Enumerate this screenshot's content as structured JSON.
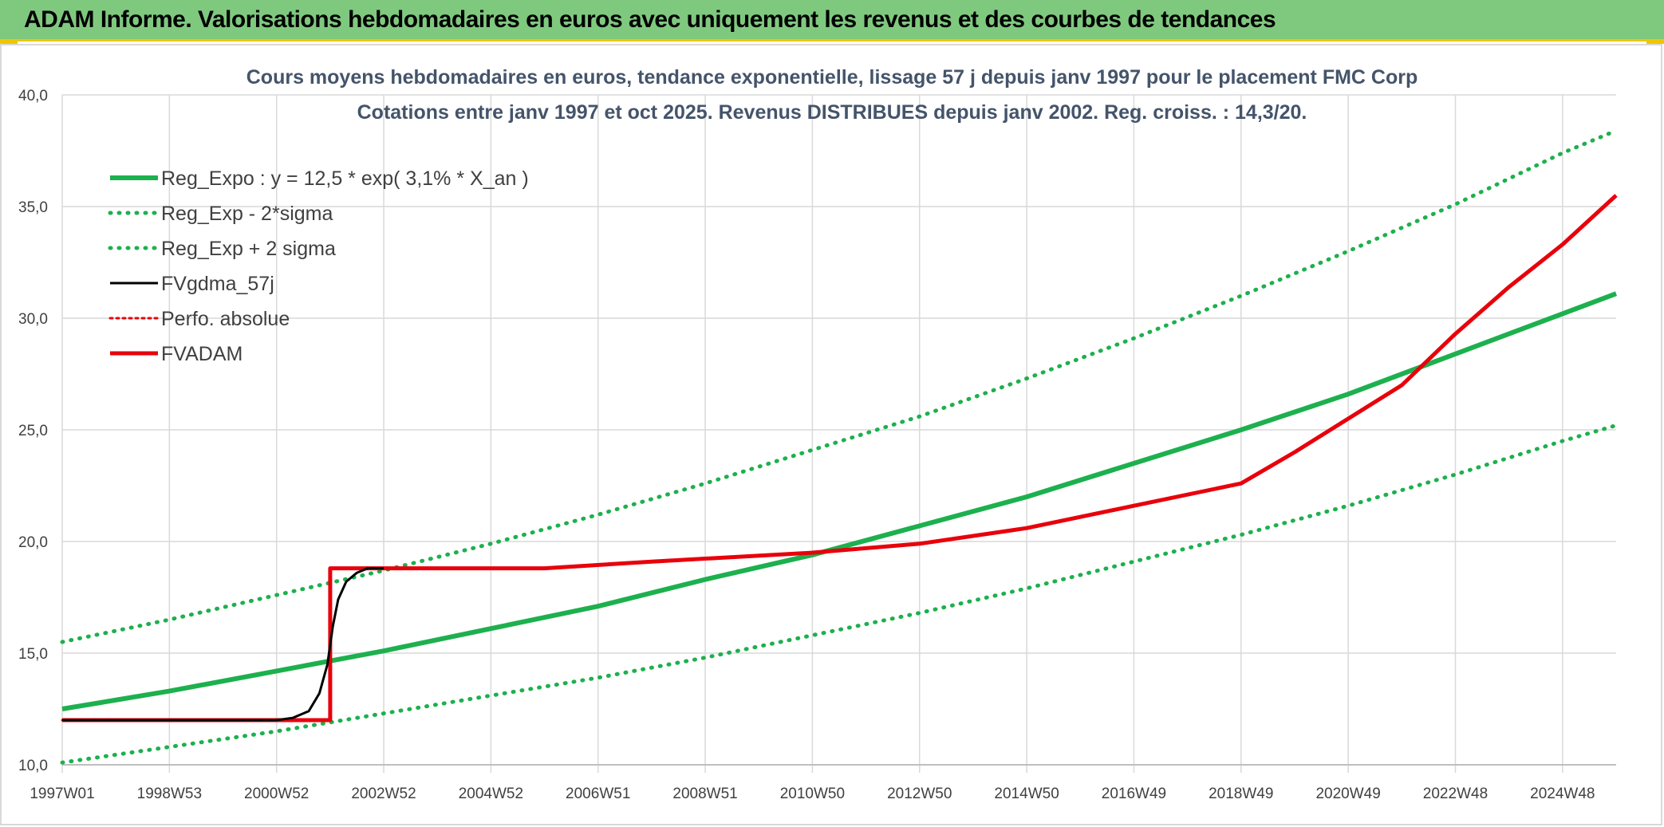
{
  "header": {
    "title": "ADAM Informe. Valorisations hebdomadaires en euros avec uniquement les revenus et des courbes de tendances"
  },
  "colors": {
    "header_bg": "#7fc97f",
    "accent": "#f2c500",
    "green": "#1db04e",
    "black": "#000000",
    "red": "#e8000b"
  },
  "chart_data": {
    "type": "line",
    "title": "Cours moyens hebdomadaires en euros, tendance exponentielle, lissage 57 j depuis janv 1997 pour le placement FMC Corp",
    "subtitle": "Cotations entre janv 1997 et oct 2025. Revenus DISTRIBUES depuis janv 2002. Reg. croiss. : 14,3/20.",
    "xlabel": "",
    "ylabel": "",
    "xlim": [
      1997.0,
      2026.0
    ],
    "ylim": [
      10,
      40
    ],
    "y_ticks": [
      "10,0",
      "15,0",
      "20,0",
      "25,0",
      "30,0",
      "35,0",
      "40,0"
    ],
    "x_ticks": [
      {
        "label": "1997W01",
        "x": 1997.0
      },
      {
        "label": "1998W53",
        "x": 1999.0
      },
      {
        "label": "2000W52",
        "x": 2001.0
      },
      {
        "label": "2002W52",
        "x": 2003.0
      },
      {
        "label": "2004W52",
        "x": 2005.0
      },
      {
        "label": "2006W51",
        "x": 2007.0
      },
      {
        "label": "2008W51",
        "x": 2009.0
      },
      {
        "label": "2010W50",
        "x": 2011.0
      },
      {
        "label": "2012W50",
        "x": 2013.0
      },
      {
        "label": "2014W50",
        "x": 2015.0
      },
      {
        "label": "2016W49",
        "x": 2017.0
      },
      {
        "label": "2018W49",
        "x": 2019.0
      },
      {
        "label": "2020W49",
        "x": 2021.0
      },
      {
        "label": "2022W48",
        "x": 2023.0
      },
      {
        "label": "2024W48",
        "x": 2025.0
      }
    ],
    "grid": true,
    "legend_position": "top-left",
    "series": [
      {
        "name": "Reg_Expo : y = 12,5 * exp( 3,1% *  X_an )",
        "style": "solid",
        "color": "#1db04e",
        "x": [
          1997,
          1999,
          2001,
          2003,
          2005,
          2007,
          2009,
          2011,
          2013,
          2015,
          2017,
          2019,
          2021,
          2023,
          2025,
          2026
        ],
        "y": [
          12.5,
          13.3,
          14.2,
          15.1,
          16.1,
          17.1,
          18.3,
          19.4,
          20.7,
          22.0,
          23.5,
          25.0,
          26.6,
          28.4,
          30.2,
          31.1
        ]
      },
      {
        "name": "Reg_Exp - 2*sigma",
        "style": "dotted",
        "color": "#1db04e",
        "x": [
          1997,
          1999,
          2001,
          2003,
          2005,
          2007,
          2009,
          2011,
          2013,
          2015,
          2017,
          2019,
          2021,
          2023,
          2025,
          2026
        ],
        "y": [
          10.1,
          10.8,
          11.5,
          12.3,
          13.1,
          13.9,
          14.8,
          15.8,
          16.8,
          17.9,
          19.1,
          20.3,
          21.6,
          23.0,
          24.5,
          25.2
        ]
      },
      {
        "name": "Reg_Exp + 2 sigma",
        "style": "dotted",
        "color": "#1db04e",
        "x": [
          1997,
          1999,
          2001,
          2003,
          2005,
          2007,
          2009,
          2011,
          2013,
          2015,
          2017,
          2019,
          2021,
          2023,
          2025,
          2026
        ],
        "y": [
          15.5,
          16.5,
          17.6,
          18.7,
          19.9,
          21.2,
          22.6,
          24.1,
          25.6,
          27.3,
          29.1,
          31.0,
          33.0,
          35.1,
          37.4,
          38.4
        ]
      },
      {
        "name": "FVgdma_57j",
        "style": "solid",
        "color": "#000000",
        "x": [
          1997.0,
          2001.0,
          2001.3,
          2001.6,
          2001.8,
          2001.95,
          2002.05,
          2002.15,
          2002.3,
          2002.5,
          2002.7,
          2003.0
        ],
        "y": [
          12.0,
          12.0,
          12.1,
          12.4,
          13.2,
          14.5,
          16.2,
          17.4,
          18.2,
          18.6,
          18.8,
          18.8
        ]
      },
      {
        "name": "Perfo. absolue",
        "style": "dotted",
        "color": "#e8000b",
        "x": [
          1997.0,
          2002.0,
          2002.0,
          2006.0,
          2008.0,
          2011.0,
          2013.0,
          2015.0,
          2017.0,
          2019.0,
          2020.0,
          2021.0,
          2022.0,
          2023.0,
          2024.0,
          2025.0,
          2026.0
        ],
        "y": [
          12.0,
          12.0,
          18.8,
          18.8,
          19.1,
          19.5,
          19.9,
          20.6,
          21.6,
          22.6,
          24.0,
          25.5,
          27.0,
          29.3,
          31.4,
          33.3,
          35.5
        ]
      },
      {
        "name": "FVADAM",
        "style": "solid",
        "color": "#e8000b",
        "x": [
          1997.0,
          2002.0,
          2002.0,
          2006.0,
          2008.0,
          2011.0,
          2013.0,
          2015.0,
          2017.0,
          2019.0,
          2020.0,
          2021.0,
          2022.0,
          2023.0,
          2024.0,
          2025.0,
          2026.0
        ],
        "y": [
          12.0,
          12.0,
          18.8,
          18.8,
          19.1,
          19.5,
          19.9,
          20.6,
          21.6,
          22.6,
          24.0,
          25.5,
          27.0,
          29.3,
          31.4,
          33.3,
          35.5
        ]
      }
    ]
  }
}
